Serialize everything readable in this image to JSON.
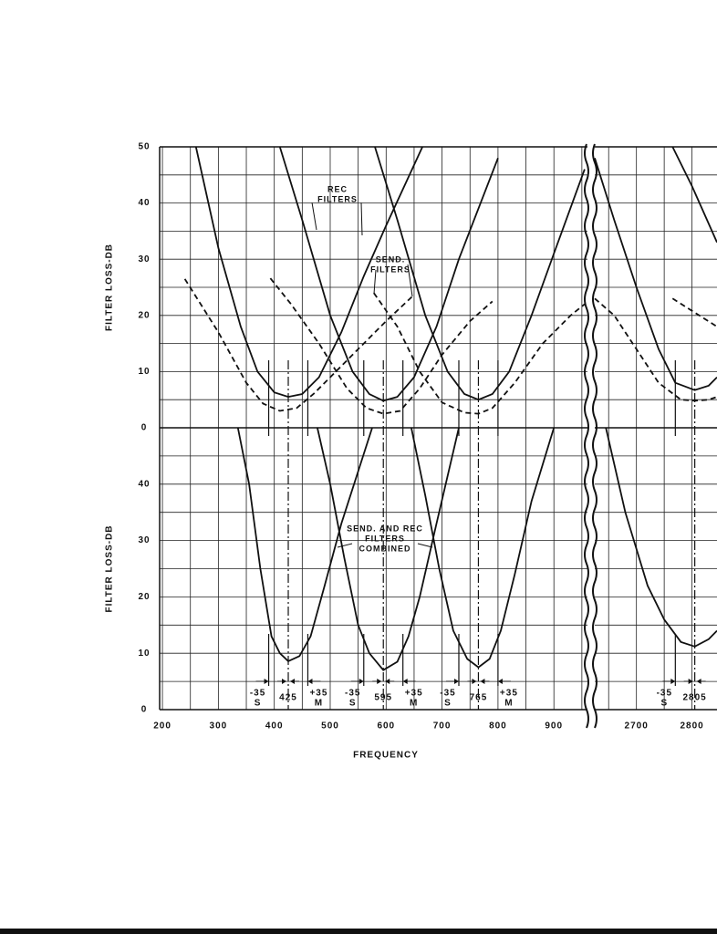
{
  "chart_data": {
    "type": "line",
    "xlabel": "FREQUENCY",
    "x_segments": [
      {
        "xlim": [
          195,
          960
        ],
        "xticks": [
          200,
          300,
          400,
          500,
          600,
          700,
          800,
          900
        ],
        "minor_xticks": [
          250,
          350,
          450,
          550,
          650,
          750,
          850,
          950
        ]
      },
      {
        "xlim": [
          2625,
          2845
        ],
        "xticks": [
          2700,
          2800
        ],
        "minor_xticks": [
          2650,
          2750
        ]
      }
    ],
    "grid": true,
    "panels": [
      {
        "ylabel": "FILTER LOSS-DB",
        "ylim": [
          0,
          50
        ],
        "yticks": [
          0,
          10,
          20,
          30,
          40,
          50
        ],
        "minor_yticks": [
          5,
          15,
          25,
          35,
          45
        ],
        "annotations": [
          {
            "lines": [
              "REC",
              "FILTERS"
            ]
          },
          {
            "lines": [
              "SEND.",
              "FILTERS"
            ]
          }
        ],
        "series": [
          {
            "color": "#111111",
            "dash": false,
            "x": [
              260,
              300,
              340,
              370,
              400,
              425,
              450,
              480,
              520,
              560,
              600,
              665,
              null,
              410,
              450,
              500,
              540,
              570,
              595,
              620,
              650,
              690,
              730,
              800,
              null,
              580,
              620,
              670,
              710,
              740,
              765,
              790,
              820,
              860,
              900,
              955,
              null,
              2625,
              2660,
              2700,
              2740,
              2770,
              2805,
              2830,
              2845,
              null,
              2765,
              2800,
              2845
            ],
            "values": [
              50,
              32,
              18,
              10,
              6.3,
              5.5,
              6,
              9,
              17,
              27,
              36,
              50,
              null,
              50,
              37,
              20,
              10,
              6,
              4.8,
              5.5,
              9,
              18,
              30,
              48,
              null,
              50,
              37,
              20,
              10,
              6,
              5,
              6,
              10,
              20,
              31,
              46,
              null,
              48,
              37,
              25,
              14,
              8,
              6.7,
              7.5,
              9,
              null,
              50,
              43,
              33
            ]
          },
          {
            "color": "#111111",
            "dash": true,
            "x": [
              240,
              300,
              350,
              380,
              410,
              440,
              470,
              500,
              560,
              600,
              647,
              null,
              393,
              430,
              480,
              530,
              565,
              595,
              625,
              660,
              700,
              750,
              790,
              null,
              578,
              620,
              660,
              700,
              740,
              765,
              790,
              830,
              880,
              930,
              955,
              null,
              2625,
              2660,
              2700,
              2740,
              2780,
              2805,
              2830,
              2845,
              null,
              2765,
              2845
            ],
            "values": [
              26.5,
              17,
              8,
              4.3,
              3,
              3.5,
              6,
              9,
              15,
              19,
              23.4,
              null,
              26.6,
              22,
              15,
              7,
              3.5,
              2.5,
              3,
              7,
              13,
              19,
              22.5,
              null,
              24,
              18,
              10,
              4.5,
              2.7,
              2.5,
              3.5,
              8,
              15,
              20,
              22,
              null,
              23,
              20,
              14,
              8,
              5,
              4.8,
              5,
              5.5,
              null,
              23,
              18
            ]
          }
        ]
      },
      {
        "ylabel": "FILTER LOSS-DB",
        "ylim": [
          0,
          50
        ],
        "yticks": [
          0,
          10,
          20,
          30,
          40
        ],
        "minor_yticks": [
          5,
          15,
          25,
          35,
          45
        ],
        "annotations": [
          {
            "lines": [
              "SEND. AND REC",
              "FILTERS",
              "COMBINED"
            ]
          }
        ],
        "series": [
          {
            "color": "#111111",
            "dash": false,
            "x": [
              335,
              355,
              375,
              395,
              410,
              425,
              445,
              465,
              490,
              520,
              575,
              null,
              477,
              500,
              525,
              550,
              570,
              595,
              620,
              640,
              660,
              690,
              730,
              null,
              645,
              670,
              695,
              720,
              745,
              765,
              785,
              805,
              830,
              860,
              900,
              null,
              2645,
              2680,
              2720,
              2750,
              2780,
              2805,
              2830,
              2845
            ],
            "values": [
              50,
              40,
              25,
              13,
              10,
              8.6,
              9.5,
              13,
              22,
              33,
              50,
              null,
              50,
              40,
              27,
              15,
              10,
              7,
              8.5,
              13,
              20,
              33,
              50,
              null,
              50,
              38,
              25,
              14,
              9,
              7.5,
              9,
              14,
              24,
              37,
              50,
              null,
              50,
              35,
              22,
              16,
              12,
              11.2,
              12.5,
              14
            ]
          }
        ]
      }
    ],
    "band_marks": [
      {
        "center": 425,
        "low": -35,
        "low_tag": "S",
        "high": {
          "value": 35,
          "label": "+35"
        },
        "high_tag": "M"
      },
      {
        "center": 595,
        "low": -35,
        "low_tag": "S",
        "high": {
          "value": 35,
          "label": "+35"
        },
        "high_tag": "M"
      },
      {
        "center": 765,
        "low": -35,
        "low_tag": "S",
        "high": {
          "value": 35,
          "label": "+35"
        },
        "high_tag": "M"
      },
      {
        "center": 2805,
        "low": -35,
        "low_tag": "S"
      }
    ]
  }
}
